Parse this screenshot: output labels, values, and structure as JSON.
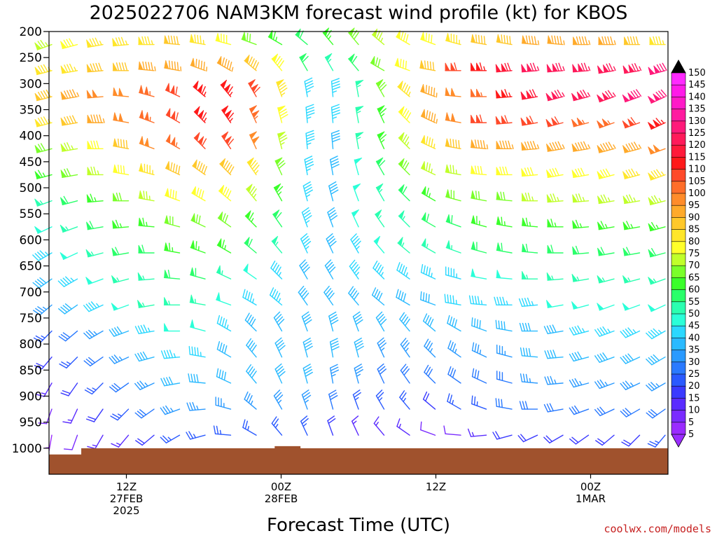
{
  "title": "2025022706 NAM3KM forecast wind profile (kt) for KBOS",
  "xlabel": "Forecast Time (UTC)",
  "credit": "coolwx.com/models",
  "chart_data": {
    "type": "wind-barb-time-height",
    "title": "2025022706 NAM3KM forecast wind profile (kt) for KBOS",
    "xlabel": "Forecast Time (UTC)",
    "ylabel": "",
    "y_axis": {
      "unit": "hPa",
      "range": [
        1050,
        200
      ],
      "ticks": [
        200,
        250,
        300,
        350,
        400,
        450,
        500,
        550,
        600,
        650,
        700,
        750,
        800,
        850,
        900,
        950,
        1000
      ]
    },
    "x_axis": {
      "range_hours_from_06Z_27FEB": [
        0,
        48
      ],
      "tick_labels": [
        {
          "hour": 6,
          "lines": [
            "12Z",
            "27FEB",
            "2025"
          ]
        },
        {
          "hour": 18,
          "lines": [
            "00Z",
            "28FEB"
          ]
        },
        {
          "hour": 30,
          "lines": [
            "12Z"
          ]
        },
        {
          "hour": 42,
          "lines": [
            "00Z",
            "1MAR"
          ]
        },
        {
          "hour": 54,
          "lines": [
            "12Z"
          ]
        }
      ]
    },
    "colorbar": {
      "unit": "kt",
      "labels": [
        5,
        10,
        15,
        20,
        25,
        30,
        35,
        40,
        45,
        50,
        55,
        60,
        65,
        70,
        75,
        80,
        85,
        90,
        95,
        100,
        105,
        110,
        115,
        120,
        125,
        130,
        135,
        140,
        145,
        150
      ],
      "colors": [
        "#9a2cff",
        "#7a2cff",
        "#5a2cff",
        "#3a3aff",
        "#2a5aff",
        "#2a7aff",
        "#2a9aff",
        "#2abaff",
        "#2ad8ff",
        "#2affd8",
        "#2affb0",
        "#2aff6a",
        "#3aff2a",
        "#7aff2a",
        "#c0ff2a",
        "#ffff2a",
        "#ffe62a",
        "#ffc82a",
        "#ffaa2a",
        "#ff8c2a",
        "#ff6e2a",
        "#ff4a2a",
        "#ff1a1a",
        "#ff1a3a",
        "#ff1a5a",
        "#ff1a7a",
        "#ff1aa0",
        "#ff1ac8",
        "#ff1ae8",
        "#ff2aff"
      ],
      "extend": [
        "min",
        "max"
      ]
    },
    "levels_hPa": [
      225,
      275,
      325,
      375,
      425,
      475,
      525,
      575,
      625,
      675,
      725,
      775,
      825,
      875,
      925,
      975
    ],
    "wind_speed_kt_profile": [
      [
        75,
        80,
        85,
        85,
        85,
        90,
        85,
        80,
        70,
        65,
        60,
        65,
        70,
        75,
        80,
        80,
        85,
        90,
        90,
        95,
        95,
        95,
        95,
        90,
        85
      ],
      [
        85,
        85,
        90,
        90,
        95,
        95,
        95,
        95,
        90,
        80,
        60,
        55,
        60,
        70,
        80,
        90,
        110,
        115,
        120,
        125,
        125,
        125,
        125,
        125,
        130
      ],
      [
        90,
        95,
        100,
        100,
        105,
        110,
        115,
        115,
        110,
        85,
        45,
        45,
        55,
        70,
        85,
        95,
        100,
        105,
        115,
        120,
        125,
        125,
        125,
        130,
        130
      ],
      [
        85,
        90,
        95,
        100,
        105,
        110,
        115,
        115,
        105,
        80,
        45,
        45,
        55,
        65,
        80,
        95,
        100,
        110,
        110,
        110,
        110,
        105,
        105,
        110,
        115
      ],
      [
        70,
        75,
        80,
        90,
        100,
        105,
        110,
        110,
        100,
        75,
        45,
        40,
        55,
        65,
        75,
        85,
        90,
        95,
        95,
        95,
        95,
        95,
        95,
        95,
        100
      ],
      [
        65,
        70,
        75,
        80,
        85,
        90,
        90,
        90,
        85,
        70,
        45,
        40,
        50,
        60,
        70,
        75,
        75,
        80,
        80,
        80,
        80,
        80,
        80,
        85,
        85
      ],
      [
        55,
        60,
        65,
        70,
        75,
        80,
        80,
        80,
        75,
        65,
        45,
        40,
        50,
        55,
        60,
        65,
        70,
        70,
        70,
        75,
        75,
        75,
        75,
        75,
        75
      ],
      [
        50,
        55,
        60,
        65,
        65,
        70,
        70,
        70,
        65,
        60,
        45,
        40,
        50,
        55,
        55,
        60,
        60,
        65,
        65,
        65,
        65,
        65,
        65,
        65,
        65
      ],
      [
        45,
        50,
        55,
        60,
        60,
        65,
        65,
        65,
        60,
        55,
        45,
        40,
        45,
        50,
        55,
        55,
        55,
        60,
        60,
        60,
        60,
        60,
        60,
        60,
        60
      ],
      [
        40,
        45,
        50,
        55,
        55,
        60,
        60,
        55,
        50,
        45,
        40,
        40,
        45,
        45,
        45,
        45,
        45,
        50,
        50,
        55,
        55,
        55,
        55,
        55,
        55
      ],
      [
        35,
        40,
        45,
        50,
        55,
        55,
        55,
        50,
        45,
        45,
        40,
        40,
        40,
        40,
        40,
        40,
        45,
        45,
        45,
        45,
        50,
        50,
        50,
        50,
        50
      ],
      [
        25,
        30,
        35,
        40,
        45,
        50,
        50,
        45,
        40,
        40,
        40,
        40,
        40,
        40,
        40,
        40,
        40,
        40,
        40,
        40,
        40,
        45,
        45,
        45,
        45
      ],
      [
        20,
        25,
        30,
        35,
        40,
        45,
        45,
        40,
        40,
        40,
        40,
        40,
        40,
        35,
        35,
        35,
        35,
        35,
        35,
        40,
        40,
        40,
        40,
        40,
        40
      ],
      [
        15,
        20,
        25,
        30,
        35,
        40,
        40,
        40,
        40,
        40,
        40,
        35,
        35,
        30,
        30,
        30,
        30,
        30,
        30,
        35,
        35,
        35,
        35,
        35,
        35
      ],
      [
        10,
        15,
        20,
        25,
        30,
        35,
        35,
        35,
        35,
        35,
        35,
        30,
        25,
        25,
        25,
        20,
        25,
        25,
        30,
        30,
        30,
        30,
        30,
        30,
        30
      ],
      [
        5,
        10,
        15,
        15,
        20,
        25,
        25,
        25,
        25,
        25,
        25,
        20,
        15,
        15,
        15,
        10,
        10,
        15,
        20,
        20,
        20,
        20,
        20,
        20,
        25
      ]
    ],
    "terrain_color": "#a0522d",
    "grid": false
  }
}
